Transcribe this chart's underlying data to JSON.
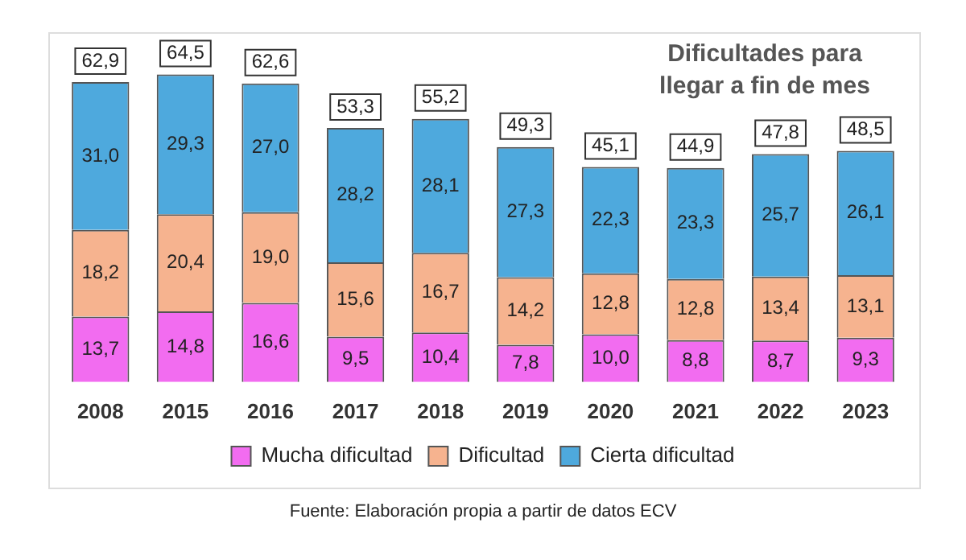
{
  "chart_data": {
    "type": "bar",
    "title": "Dificultades para llegar a fin de mes",
    "stacked": true,
    "legend": "bottom",
    "grid": false,
    "tick_labels": "x",
    "categories": [
      "2008",
      "2015",
      "2016",
      "2017",
      "2018",
      "2019",
      "2020",
      "2021",
      "2022",
      "2023"
    ],
    "series": [
      {
        "name": "Mucha dificultad",
        "color": "#f26cf0",
        "values": [
          13.7,
          14.8,
          16.6,
          9.5,
          10.4,
          7.8,
          10.0,
          8.8,
          8.7,
          9.3
        ],
        "value_labels": [
          "13,7",
          "14,8",
          "16,6",
          "9,5",
          "10,4",
          "7,8",
          "10,0",
          "8,8",
          "8,7",
          "9,3"
        ]
      },
      {
        "name": "Dificultad",
        "color": "#f6b38f",
        "values": [
          18.2,
          20.4,
          19.0,
          15.6,
          16.7,
          14.2,
          12.8,
          12.8,
          13.4,
          13.1
        ],
        "value_labels": [
          "18,2",
          "20,4",
          "19,0",
          "15,6",
          "16,7",
          "14,2",
          "12,8",
          "12,8",
          "13,4",
          "13,1"
        ]
      },
      {
        "name": "Cierta dificultad",
        "color": "#4ea9dd",
        "values": [
          31.0,
          29.3,
          27.0,
          28.2,
          28.1,
          27.3,
          22.3,
          23.3,
          25.7,
          26.1
        ],
        "value_labels": [
          "31,0",
          "29,3",
          "27,0",
          "28,2",
          "28,1",
          "27,3",
          "22,3",
          "23,3",
          "25,7",
          "26,1"
        ]
      }
    ],
    "totals": [
      "62,9",
      "64,5",
      "62,6",
      "53,3",
      "55,2",
      "49,3",
      "45,1",
      "44,9",
      "47,8",
      "48,5"
    ],
    "annotations": [
      "Fuente: Elaboración propia a partir de datos ECV"
    ]
  }
}
